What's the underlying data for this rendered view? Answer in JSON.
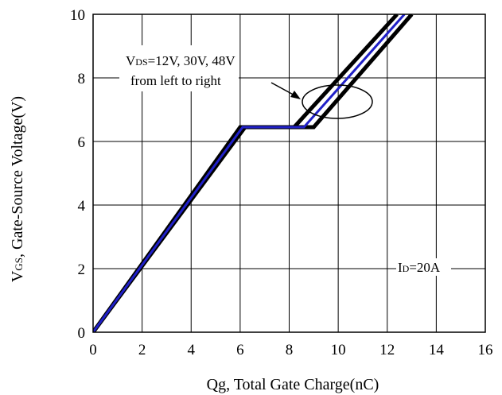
{
  "chart_data": {
    "type": "line",
    "xlabel": "Qg, Total Gate Charge(nC)",
    "ylabel": "VGS, Gate-Source Voltage(V)",
    "xlim": [
      0,
      16
    ],
    "ylim": [
      0,
      10
    ],
    "xticks": [
      "0",
      "2",
      "4",
      "6",
      "8",
      "10",
      "12",
      "14",
      "16"
    ],
    "yticks": [
      "0",
      "2",
      "4",
      "6",
      "8",
      "10"
    ],
    "grid": true,
    "series": [
      {
        "name": "VDS=12V",
        "color": "#000000",
        "x": [
          0,
          6.0,
          8.2,
          12.4
        ],
        "y": [
          0,
          6.45,
          6.45,
          10
        ]
      },
      {
        "name": "VDS=30V",
        "color": "#2020c8",
        "x": [
          0,
          6.1,
          8.6,
          12.7
        ],
        "y": [
          0,
          6.45,
          6.45,
          10
        ]
      },
      {
        "name": "VDS=48V",
        "color": "#000000",
        "x": [
          0,
          6.2,
          9.0,
          13.0
        ],
        "y": [
          0,
          6.45,
          6.45,
          10
        ]
      }
    ],
    "annotation_text": {
      "vds_sub": "DS",
      "vds_values": "=12V, 30V, 48V",
      "order_text": "from left to right",
      "id_sub": "D",
      "id_value": "=20A"
    }
  }
}
